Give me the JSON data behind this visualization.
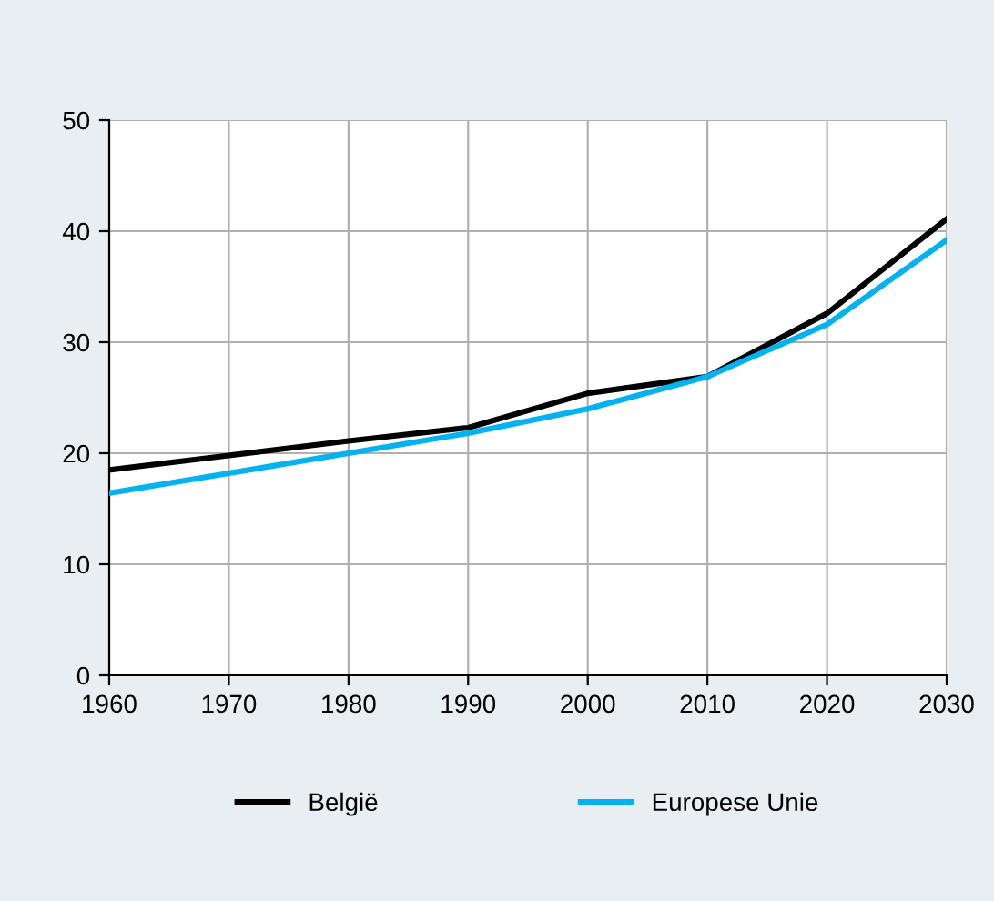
{
  "chart_data": {
    "type": "line",
    "x": [
      1960,
      1970,
      1980,
      1990,
      2000,
      2010,
      2020,
      2030
    ],
    "series": [
      {
        "name": "België",
        "color": "#000000",
        "values": [
          18.5,
          19.8,
          21.1,
          22.3,
          25.4,
          26.9,
          32.6,
          41.1
        ]
      },
      {
        "name": "Europese Unie",
        "color": "#00b2ef",
        "values": [
          16.4,
          18.2,
          20.0,
          21.8,
          24.0,
          26.9,
          31.6,
          39.2
        ]
      }
    ],
    "xlim": [
      1960,
      2030
    ],
    "xticks": [
      1960,
      1970,
      1980,
      1990,
      2000,
      2010,
      2020,
      2030
    ],
    "ylim": [
      0,
      50
    ],
    "yticks": [
      0,
      10,
      20,
      30,
      40,
      50
    ],
    "grid": true,
    "legend": "bottom",
    "marker": "none",
    "line_style": "solid"
  }
}
